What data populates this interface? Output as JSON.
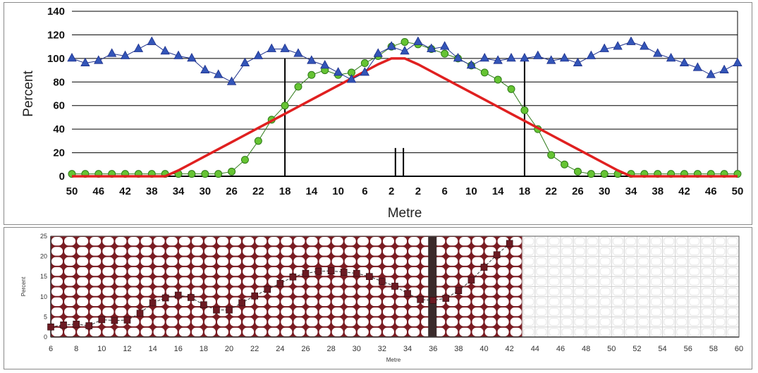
{
  "chart_data": [
    {
      "type": "line",
      "title": "",
      "xlabel": "Metre",
      "ylabel": "Percent",
      "ylim": [
        0,
        140
      ],
      "yticks": [
        "0",
        "20",
        "40",
        "60",
        "80",
        "100",
        "120",
        "140"
      ],
      "xtick_labels": [
        "50",
        "46",
        "42",
        "38",
        "34",
        "30",
        "26",
        "22",
        "18",
        "14",
        "10",
        "6",
        "2",
        "2",
        "6",
        "10",
        "14",
        "18",
        "22",
        "26",
        "30",
        "34",
        "38",
        "42",
        "46",
        "50"
      ],
      "grid": true,
      "legend": "none",
      "colors": {
        "blue": "#3355b8",
        "green": "#66c433",
        "red": "#e02020",
        "axis": "#000000"
      },
      "x": [
        -50,
        -48,
        -46,
        -44,
        -42,
        -40,
        -38,
        -36,
        -34,
        -32,
        -30,
        -28,
        -26,
        -24,
        -22,
        -20,
        -18,
        -16,
        -14,
        -12,
        -10,
        -8,
        -6,
        -4,
        -2,
        0,
        2,
        4,
        6,
        8,
        10,
        12,
        14,
        16,
        18,
        20,
        22,
        24,
        26,
        28,
        30,
        32,
        34,
        36,
        38,
        40,
        42,
        44,
        46,
        48,
        50
      ],
      "series": [
        {
          "values": [
            100,
            96,
            98,
            104,
            102,
            108,
            114,
            106,
            102,
            100,
            90,
            86,
            80,
            96,
            102,
            108,
            108,
            104,
            98,
            94,
            88,
            82,
            88,
            104,
            110,
            106,
            114,
            108,
            110,
            100,
            94,
            100,
            98,
            100,
            100,
            102,
            98,
            100,
            96,
            102,
            108,
            110,
            114,
            110,
            104,
            100,
            96,
            92,
            86,
            90,
            96
          ]
        },
        {
          "values": [
            2,
            2,
            2,
            2,
            2,
            2,
            2,
            2,
            2,
            2,
            2,
            2,
            4,
            14,
            30,
            48,
            60,
            76,
            86,
            90,
            86,
            88,
            96,
            102,
            110,
            114,
            112,
            108,
            104,
            100,
            94,
            88,
            82,
            74,
            56,
            40,
            18,
            10,
            4,
            2,
            2,
            2,
            2,
            2,
            2,
            2,
            2,
            2,
            2,
            2,
            2
          ]
        },
        {
          "values": [
            0,
            0,
            0,
            0,
            0,
            0,
            0,
            0,
            5,
            11,
            17,
            23,
            29,
            35,
            41,
            47,
            53,
            59,
            65,
            71,
            77,
            83,
            89,
            95,
            100,
            100,
            95,
            89,
            83,
            77,
            71,
            65,
            59,
            53,
            47,
            41,
            35,
            29,
            23,
            17,
            11,
            5,
            0,
            0,
            0,
            0,
            0,
            0,
            0,
            0,
            0
          ]
        }
      ],
      "vertical_markers": [
        -18,
        -1,
        0,
        18
      ]
    },
    {
      "type": "line",
      "title": "",
      "xlabel": "Metre",
      "ylabel": "Percent",
      "ylim": [
        0,
        25
      ],
      "yticks": [
        "0",
        "5",
        "10",
        "15",
        "20",
        "25"
      ],
      "xlim": [
        6,
        60
      ],
      "xticks": [
        "6",
        "8",
        "10",
        "12",
        "14",
        "16",
        "18",
        "20",
        "22",
        "24",
        "26",
        "28",
        "30",
        "32",
        "34",
        "36",
        "38",
        "40",
        "42",
        "44",
        "46",
        "48",
        "50",
        "52",
        "54",
        "56",
        "58",
        "60"
      ],
      "grid": true,
      "legend": "none",
      "colors": {
        "grid_left": "#7a1c22",
        "marker": "#6b1a22",
        "bar": "#3a2a2a"
      },
      "x": [
        6,
        7,
        8,
        9,
        10,
        11,
        12,
        13,
        14,
        15,
        16,
        17,
        18,
        19,
        20,
        21,
        22,
        23,
        24,
        25,
        26,
        27,
        28,
        29,
        30,
        31,
        32,
        33,
        34,
        35,
        36,
        37,
        38,
        39,
        40,
        41,
        42
      ],
      "series": [
        {
          "values": [
            2.5,
            3.0,
            3.2,
            2.8,
            4.3,
            4.1,
            4.2,
            5.9,
            8.5,
            9.7,
            10.4,
            9.8,
            8.0,
            6.7,
            6.7,
            8.5,
            10.2,
            11.8,
            13.3,
            14.9,
            15.8,
            16.3,
            16.4,
            16.1,
            15.8,
            15.0,
            13.8,
            12.6,
            10.8,
            9.3,
            9.1,
            9.6,
            11.5,
            14.1,
            17.3,
            20.4,
            23.2
          ]
        }
      ],
      "highlight_bar_x": 36
    }
  ]
}
